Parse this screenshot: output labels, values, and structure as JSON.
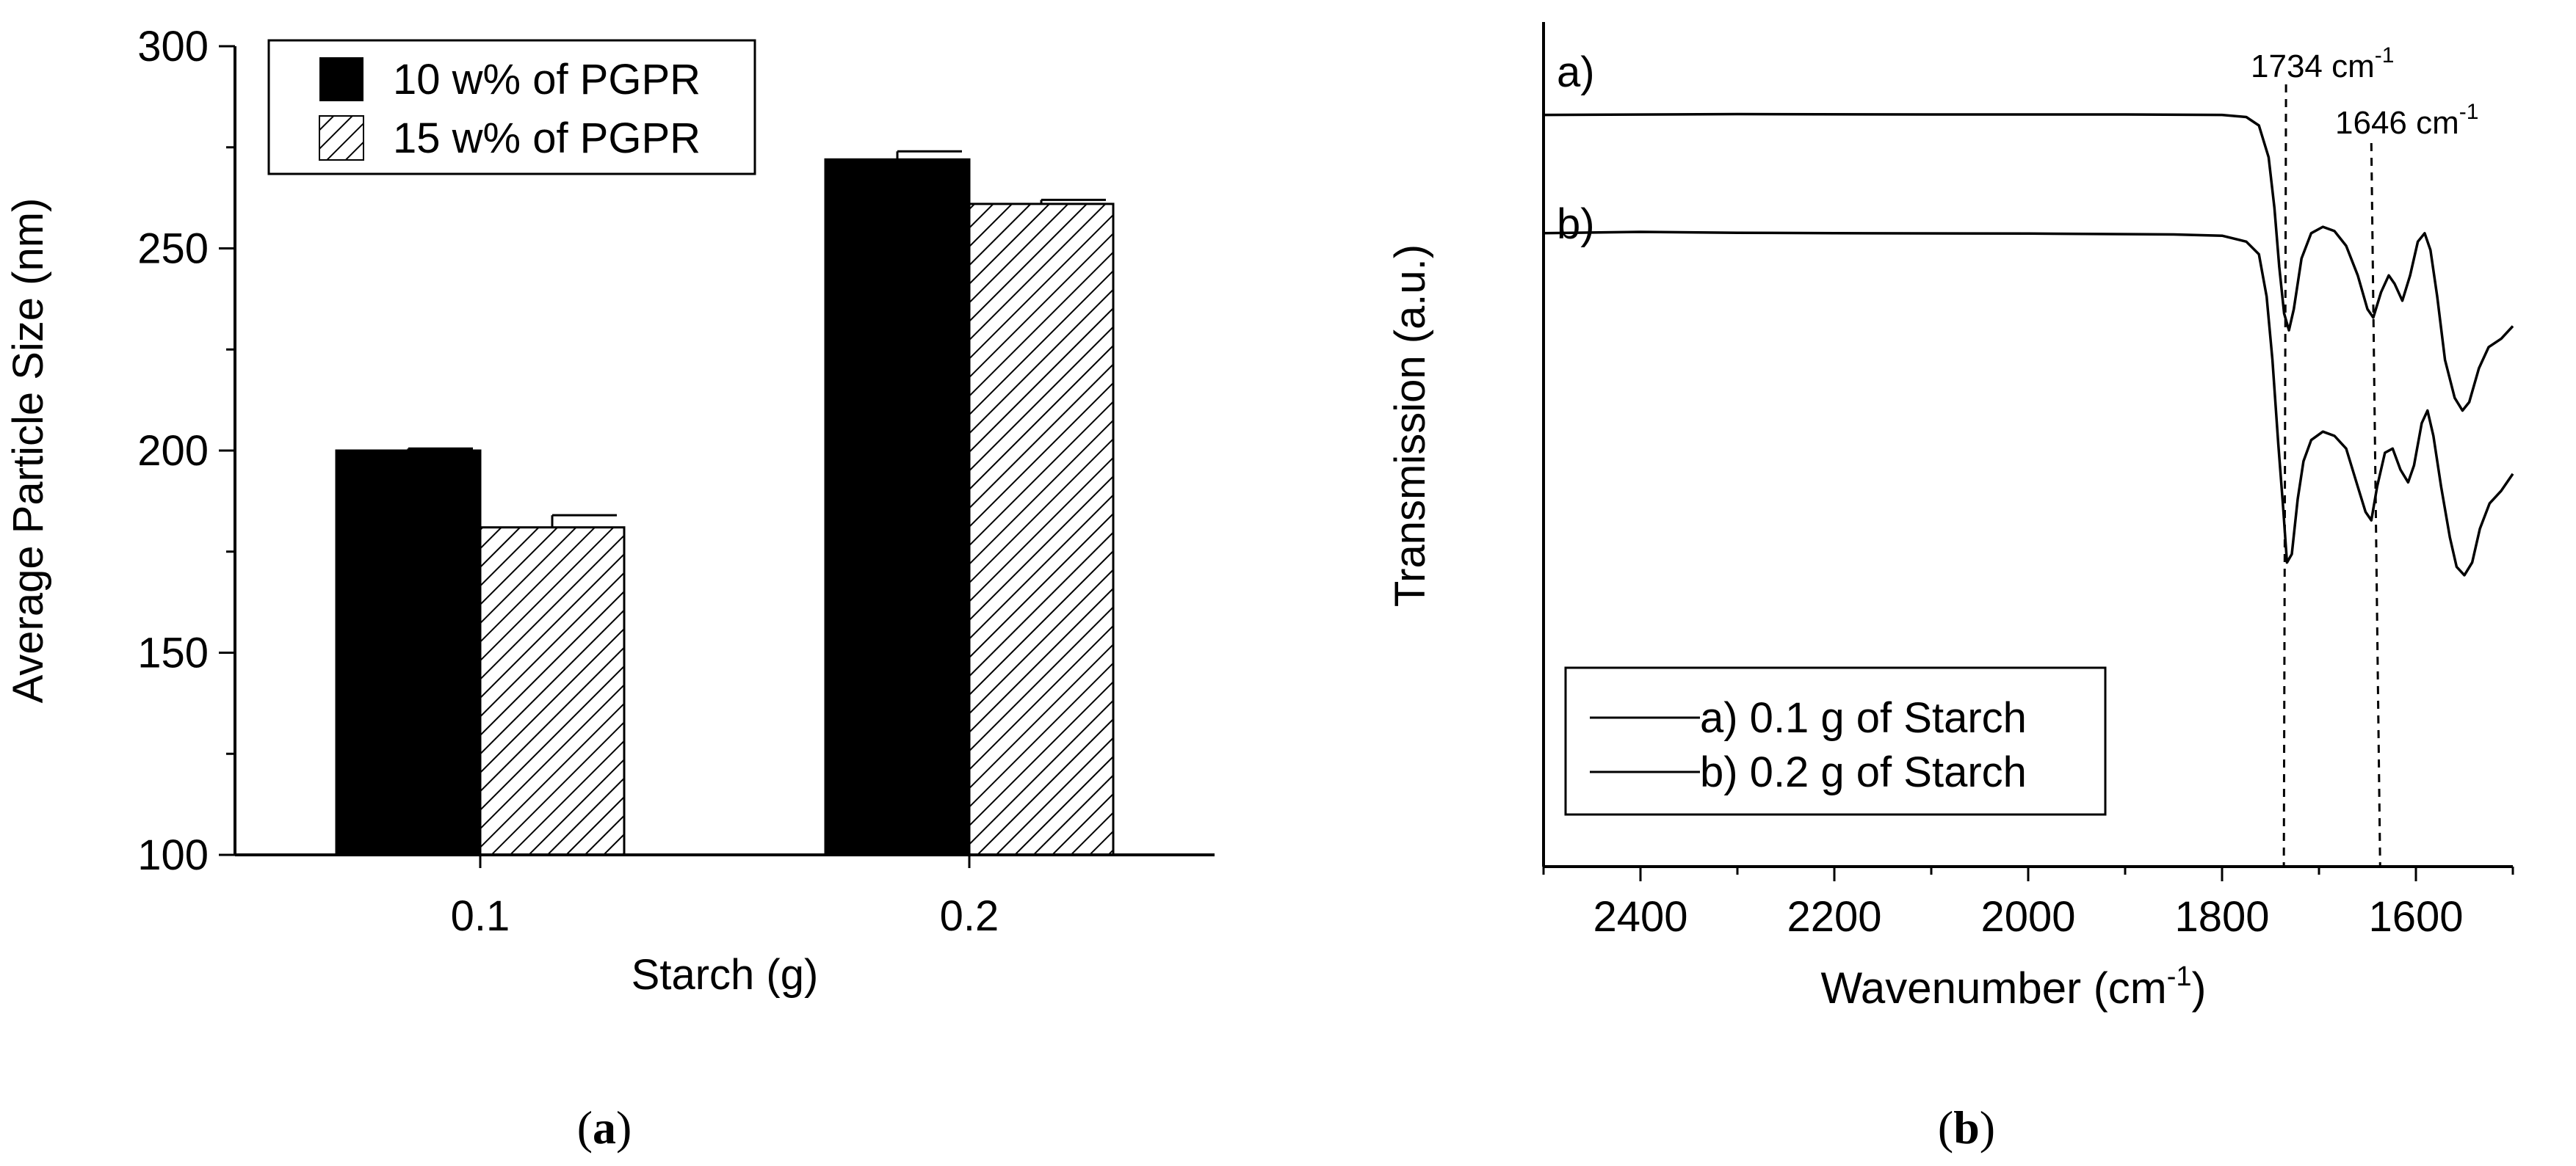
{
  "chart_data": [
    {
      "type": "bar",
      "panel_label": "a",
      "title": "",
      "xlabel": "Starch (g)",
      "ylabel": "Average Particle Size (nm)",
      "categories": [
        "0.1",
        "0.2"
      ],
      "ylim": [
        100,
        300
      ],
      "yticks": [
        "100",
        "150",
        "200",
        "250",
        "300"
      ],
      "series": [
        {
          "name": "10 w% of PGPR",
          "values": [
            200,
            272
          ],
          "errors": [
            0.5,
            2
          ],
          "fill": "solid",
          "color": "#000000"
        },
        {
          "name": "15 w% of PGPR",
          "values": [
            181,
            261
          ],
          "errors": [
            3,
            1
          ],
          "fill": "hatched",
          "color": "#000000"
        }
      ],
      "legend_position": "top-left"
    },
    {
      "type": "line",
      "panel_label": "b",
      "title": "",
      "xlabel_main": "Wavenumber (cm",
      "xlabel_sup": "-1",
      "xlabel_close": ")",
      "ylabel": "Transmission (a.u.)",
      "xlim": [
        2500,
        1500
      ],
      "xticks": [
        "2400",
        "2200",
        "2000",
        "1800",
        "1600"
      ],
      "curve_labels": [
        "a)",
        "b)"
      ],
      "annotations": [
        {
          "value": 1734,
          "label": "1734 cm",
          "sup": "-1"
        },
        {
          "value": 1646,
          "label": "1646 cm",
          "sup": "-1"
        }
      ],
      "series": [
        {
          "name": "a) 0.1 g of Starch",
          "points": [
            [
              2500,
              0.78
            ],
            [
              2300,
              0.782
            ],
            [
              2100,
              0.781
            ],
            [
              1900,
              0.781
            ],
            [
              1800,
              0.78
            ],
            [
              1775,
              0.775
            ],
            [
              1762,
              0.755
            ],
            [
              1752,
              0.68
            ],
            [
              1746,
              0.56
            ],
            [
              1741,
              0.42
            ],
            [
              1736,
              0.31
            ],
            [
              1731,
              0.27
            ],
            [
              1726,
              0.32
            ],
            [
              1718,
              0.44
            ],
            [
              1708,
              0.5
            ],
            [
              1696,
              0.515
            ],
            [
              1684,
              0.505
            ],
            [
              1672,
              0.47
            ],
            [
              1660,
              0.4
            ],
            [
              1650,
              0.32
            ],
            [
              1644,
              0.3
            ],
            [
              1636,
              0.36
            ],
            [
              1628,
              0.4
            ],
            [
              1622,
              0.38
            ],
            [
              1614,
              0.34
            ],
            [
              1606,
              0.4
            ],
            [
              1598,
              0.48
            ],
            [
              1591,
              0.5
            ],
            [
              1585,
              0.46
            ],
            [
              1578,
              0.35
            ],
            [
              1570,
              0.2
            ],
            [
              1560,
              0.11
            ],
            [
              1552,
              0.08
            ],
            [
              1545,
              0.1
            ],
            [
              1535,
              0.18
            ],
            [
              1525,
              0.23
            ],
            [
              1512,
              0.25
            ],
            [
              1500,
              0.28
            ]
          ]
        },
        {
          "name": "b) 0.2 g of Starch",
          "points": [
            [
              2500,
              0.5
            ],
            [
              2400,
              0.503
            ],
            [
              2300,
              0.501
            ],
            [
              2200,
              0.5
            ],
            [
              2000,
              0.499
            ],
            [
              1850,
              0.497
            ],
            [
              1800,
              0.494
            ],
            [
              1775,
              0.48
            ],
            [
              1762,
              0.45
            ],
            [
              1754,
              0.35
            ],
            [
              1748,
              0.2
            ],
            [
              1742,
              0.0
            ],
            [
              1737,
              -0.15
            ],
            [
              1733,
              -0.28
            ],
            [
              1728,
              -0.26
            ],
            [
              1722,
              -0.13
            ],
            [
              1716,
              -0.04
            ],
            [
              1708,
              0.01
            ],
            [
              1696,
              0.03
            ],
            [
              1684,
              0.02
            ],
            [
              1672,
              -0.01
            ],
            [
              1660,
              -0.1
            ],
            [
              1652,
              -0.16
            ],
            [
              1646,
              -0.18
            ],
            [
              1640,
              -0.1
            ],
            [
              1632,
              -0.02
            ],
            [
              1624,
              -0.01
            ],
            [
              1616,
              -0.06
            ],
            [
              1608,
              -0.09
            ],
            [
              1602,
              -0.05
            ],
            [
              1594,
              0.05
            ],
            [
              1588,
              0.08
            ],
            [
              1582,
              0.02
            ],
            [
              1574,
              -0.1
            ],
            [
              1565,
              -0.22
            ],
            [
              1558,
              -0.29
            ],
            [
              1550,
              -0.31
            ],
            [
              1542,
              -0.28
            ],
            [
              1534,
              -0.2
            ],
            [
              1524,
              -0.14
            ],
            [
              1512,
              -0.11
            ],
            [
              1500,
              -0.07
            ]
          ]
        }
      ],
      "legend_position": "bottom-left"
    }
  ]
}
